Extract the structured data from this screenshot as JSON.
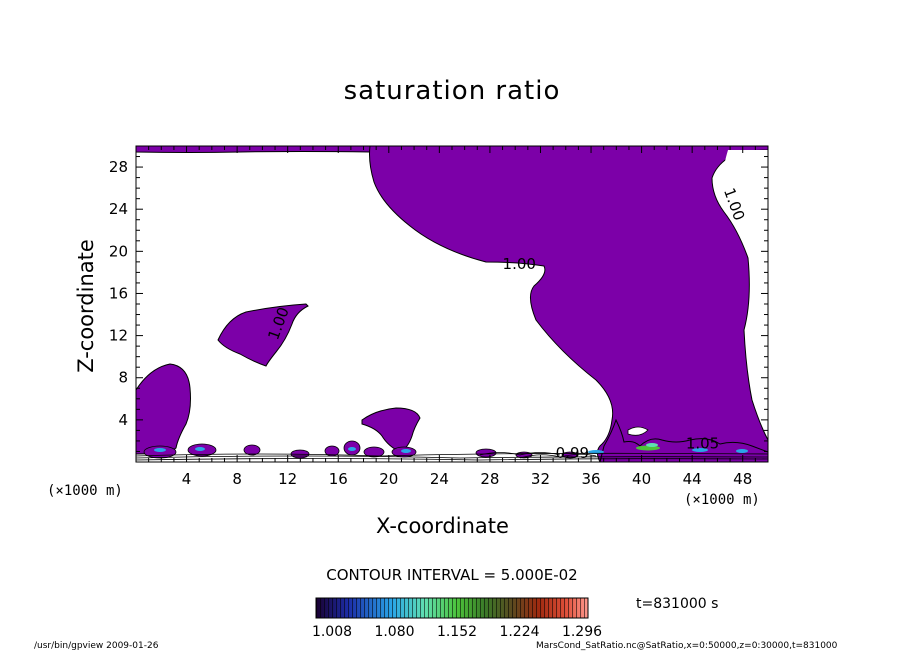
{
  "chart_data": {
    "type": "contour",
    "title": "saturation ratio",
    "xlabel": "X-coordinate",
    "ylabel": "Z-coordinate",
    "x_unit": "(×1000 m)",
    "y_unit": "(×1000 m)",
    "xlim": [
      0,
      50
    ],
    "ylim": [
      0,
      30
    ],
    "x_ticks": [
      4,
      8,
      12,
      16,
      20,
      24,
      28,
      32,
      36,
      40,
      44,
      48
    ],
    "y_ticks": [
      4,
      8,
      12,
      16,
      20,
      24,
      28
    ],
    "contour_interval_label": "CONTOUR INTERVAL = 5.000E-02",
    "contour_labels": [
      {
        "text": "1.00",
        "x": 29,
        "y": 18.3
      },
      {
        "text": "1.00",
        "x": 11.2,
        "y": 11.5
      },
      {
        "text": "1.00",
        "x": 46.5,
        "y": 25.8
      },
      {
        "text": "0.99",
        "x": 33.2,
        "y": 0.4
      },
      {
        "text": "1.05",
        "x": 43.5,
        "y": 1.3
      }
    ],
    "supersaturated_regions_color": "#7c00a8",
    "colorbar": {
      "ticks": [
        "1.008",
        "1.080",
        "1.152",
        "1.224",
        "1.296"
      ],
      "range": [
        1.008,
        1.296
      ]
    },
    "time_label": "t=831000 s"
  },
  "footer": {
    "left": "/usr/bin/gpview   2009-01-26",
    "right": "MarsCond_SatRatio.nc@SatRatio,x=0:50000,z=0:30000,t=831000"
  }
}
